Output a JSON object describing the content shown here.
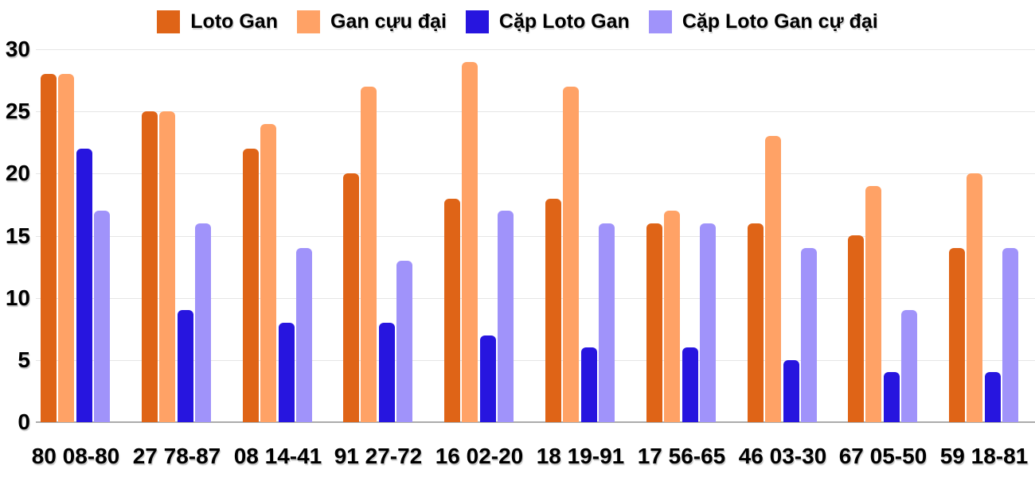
{
  "chart_data": {
    "type": "bar",
    "title": "",
    "xlabel": "",
    "ylabel": "",
    "categories": [
      "80 08-80",
      "27 78-87",
      "08 14-41",
      "91 27-72",
      "16 02-20",
      "18 19-91",
      "17 56-65",
      "46 03-30",
      "67 05-50",
      "59 18-81"
    ],
    "series": [
      {
        "name": "Loto Gan",
        "color": "#DF6417",
        "values": [
          28,
          25,
          22,
          20,
          18,
          18,
          16,
          16,
          15,
          14
        ]
      },
      {
        "name": "Gan cựu đại",
        "color": "#FFA266",
        "values": [
          28,
          25,
          24,
          27,
          29,
          27,
          17,
          23,
          19,
          20
        ]
      },
      {
        "name": "Cặp Loto Gan",
        "color": "#2715DF",
        "values": [
          22,
          9,
          8,
          8,
          7,
          6,
          6,
          5,
          4,
          4
        ]
      },
      {
        "name": "Cặp Loto Gan cự đại",
        "color": "#A093FA",
        "values": [
          17,
          16,
          14,
          13,
          17,
          16,
          16,
          14,
          9,
          14
        ]
      }
    ],
    "ylim": [
      0,
      30
    ],
    "yticks": [
      0,
      5,
      10,
      15,
      20,
      25,
      30
    ],
    "grid": true,
    "legend_position": "top"
  },
  "colors": {
    "background": "#FFFFFF",
    "gridline": "#E6E6E6",
    "baseline": "#ABABAB",
    "text": "#000000"
  }
}
